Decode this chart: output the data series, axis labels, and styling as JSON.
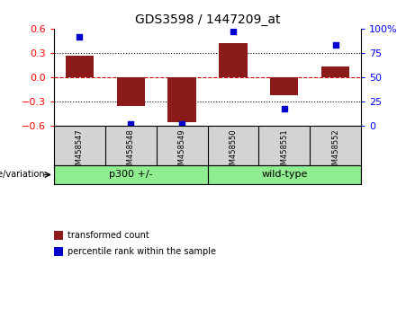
{
  "title": "GDS3598 / 1447209_at",
  "samples": [
    "GSM458547",
    "GSM458548",
    "GSM458549",
    "GSM458550",
    "GSM458551",
    "GSM458552"
  ],
  "bar_values": [
    0.27,
    -0.35,
    -0.55,
    0.42,
    -0.22,
    0.13
  ],
  "percentile_values": [
    92,
    2,
    2,
    97,
    18,
    83
  ],
  "groups": [
    {
      "label": "p300 +/-",
      "start": 0,
      "end": 3,
      "color": "#90EE90"
    },
    {
      "label": "wild-type",
      "start": 3,
      "end": 6,
      "color": "#90EE90"
    }
  ],
  "group_label": "genotype/variation",
  "bar_color": "#8B1A1A",
  "percentile_color": "#0000CC",
  "ylim_left": [
    -0.6,
    0.6
  ],
  "ylim_right": [
    0,
    100
  ],
  "yticks_left": [
    -0.6,
    -0.3,
    0.0,
    0.3,
    0.6
  ],
  "yticks_right": [
    0,
    25,
    50,
    75,
    100
  ],
  "yticklabels_right": [
    "0",
    "25",
    "50",
    "75",
    "100%"
  ],
  "zero_line_color": "#CC0000",
  "grid_color": "#000000",
  "background_color": "#ffffff",
  "plot_bg_color": "#ffffff",
  "label_transformed": "transformed count",
  "label_percentile": "percentile rank within the sample",
  "label_color_transformed": "#CC0000",
  "label_color_percentile": "#0000CC"
}
